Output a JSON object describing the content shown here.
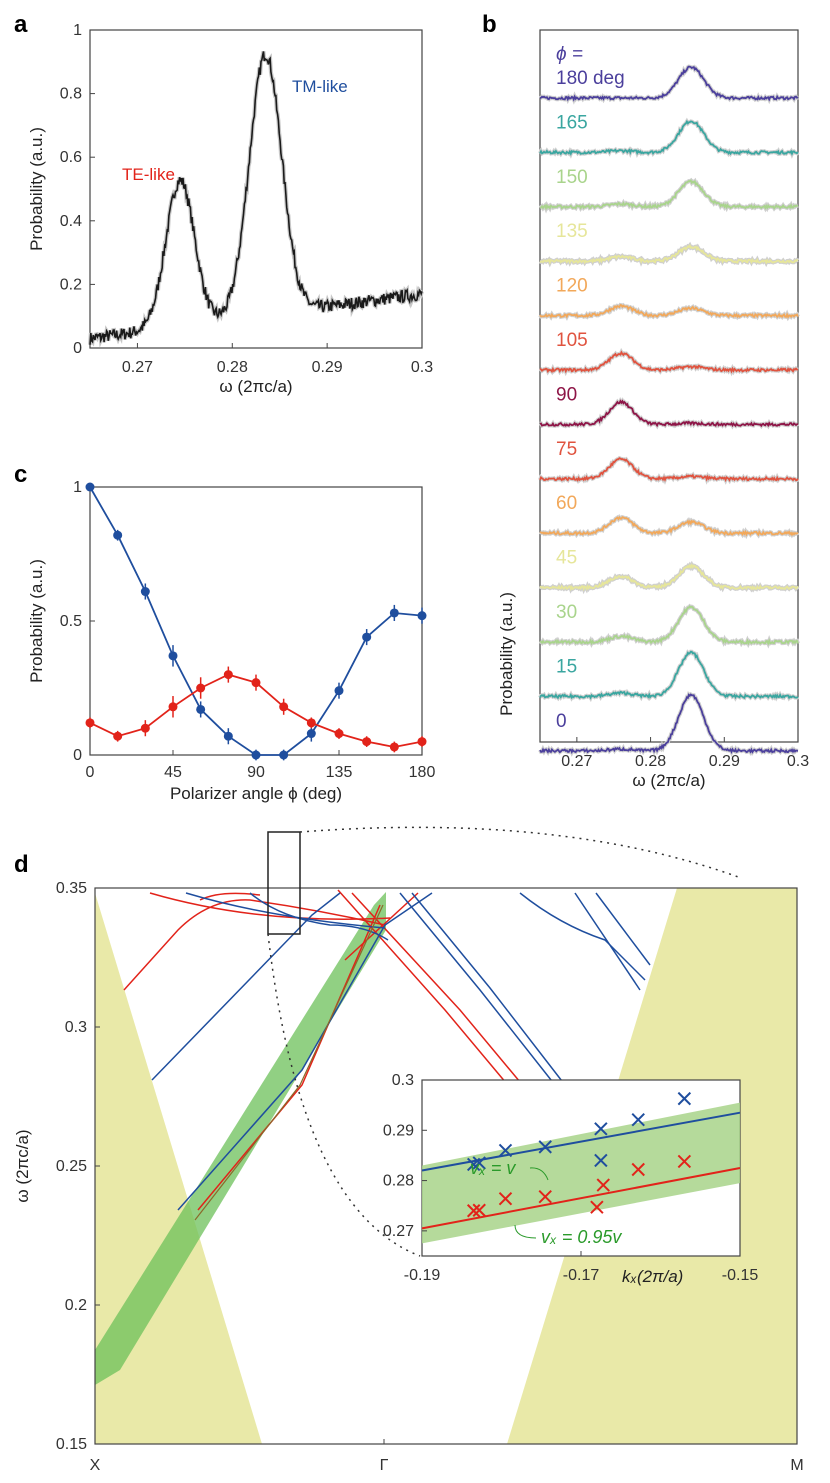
{
  "chart_data": [
    {
      "panel": "a",
      "type": "line",
      "xlabel": "ω (2πc/a)",
      "ylabel": "Probability (a.u.)",
      "xlim": [
        0.265,
        0.3
      ],
      "ylim": [
        0,
        1
      ],
      "xticks": [
        "0.27",
        "0.28",
        "0.29",
        "0.3"
      ],
      "yticks": [
        "0",
        "0.2",
        "0.4",
        "0.6",
        "0.8",
        "1"
      ],
      "annotations": [
        {
          "text": "TE-like",
          "color": "#e2231a"
        },
        {
          "text": "TM-like",
          "color": "#1f4e9e"
        }
      ],
      "series": [
        {
          "color": "#1a1a1a",
          "peaks": [
            {
              "center": 0.2745,
              "height": 0.46,
              "width": 0.0015
            },
            {
              "center": 0.2835,
              "height": 0.82,
              "width": 0.0017
            }
          ],
          "baseline_start": 0.03,
          "baseline_end": 0.17
        }
      ]
    },
    {
      "panel": "b",
      "type": "line",
      "xlabel": "ω (2πc/a)",
      "ylabel": "Probability (a.u.)",
      "xlim": [
        0.265,
        0.3
      ],
      "xticks": [
        "0.27",
        "0.28",
        "0.29",
        "0.3"
      ],
      "legend_title": "ϕ =",
      "traces": [
        {
          "label": "180 deg",
          "phi": 180,
          "color": "#4b3f9c",
          "te": 0.0,
          "tm": 0.55
        },
        {
          "label": "165",
          "phi": 165,
          "color": "#3aa6a0",
          "te": 0.03,
          "tm": 0.56
        },
        {
          "label": "150",
          "phi": 150,
          "color": "#a9d48c",
          "te": 0.05,
          "tm": 0.45
        },
        {
          "label": "135",
          "phi": 135,
          "color": "#e6e69a",
          "te": 0.08,
          "tm": 0.26
        },
        {
          "label": "120",
          "phi": 120,
          "color": "#f2a85a",
          "te": 0.17,
          "tm": 0.13
        },
        {
          "label": "105",
          "phi": 105,
          "color": "#e0533f",
          "te": 0.3,
          "tm": 0.06
        },
        {
          "label": "90",
          "phi": 90,
          "color": "#8e1547",
          "te": 0.4,
          "tm": 0.02
        },
        {
          "label": "75",
          "phi": 75,
          "color": "#e0533f",
          "te": 0.35,
          "tm": 0.04
        },
        {
          "label": "60",
          "phi": 60,
          "color": "#f2a85a",
          "te": 0.28,
          "tm": 0.2
        },
        {
          "label": "45",
          "phi": 45,
          "color": "#e6e69a",
          "te": 0.2,
          "tm": 0.38
        },
        {
          "label": "30",
          "phi": 30,
          "color": "#a9d48c",
          "te": 0.1,
          "tm": 0.62
        },
        {
          "label": "15",
          "phi": 15,
          "color": "#3aa6a0",
          "te": 0.06,
          "tm": 0.78
        },
        {
          "label": "0",
          "phi": 0,
          "color": "#4b3f9c",
          "te": 0.03,
          "tm": 1.0
        }
      ],
      "te_center": 0.276,
      "tm_center": 0.2855
    },
    {
      "panel": "c",
      "type": "line",
      "xlabel": "Polarizer angle ϕ (deg)",
      "ylabel": "Probability (a.u.)",
      "xlim": [
        0,
        180
      ],
      "ylim": [
        0,
        1
      ],
      "xticks": [
        "0",
        "45",
        "90",
        "135",
        "180"
      ],
      "yticks": [
        "0",
        "0.5",
        "1"
      ],
      "x": [
        0,
        15,
        30,
        45,
        60,
        75,
        90,
        105,
        120,
        135,
        150,
        165,
        180
      ],
      "series": [
        {
          "color": "#1f4e9e",
          "values": [
            1.0,
            0.82,
            0.61,
            0.37,
            0.17,
            0.07,
            0.0,
            0.0,
            0.08,
            0.24,
            0.44,
            0.53,
            0.52
          ],
          "errors": [
            0.0,
            0.02,
            0.03,
            0.04,
            0.03,
            0.03,
            0.02,
            0.02,
            0.03,
            0.03,
            0.03,
            0.03,
            0.03
          ]
        },
        {
          "color": "#e2231a",
          "values": [
            0.12,
            0.07,
            0.1,
            0.18,
            0.25,
            0.3,
            0.27,
            0.18,
            0.12,
            0.08,
            0.05,
            0.03,
            0.05
          ],
          "errors": [
            0.02,
            0.02,
            0.03,
            0.04,
            0.04,
            0.03,
            0.03,
            0.03,
            0.02,
            0.02,
            0.02,
            0.02,
            0.02
          ]
        }
      ]
    },
    {
      "panel": "d",
      "type": "line",
      "ylabel": "ω (2πc/a)",
      "ylim": [
        0.15,
        0.35
      ],
      "xticks": [
        "X",
        "Γ",
        "M"
      ],
      "yticks": [
        "0.15",
        "0.2",
        "0.25",
        "0.3",
        "0.35"
      ],
      "cone_color": "#e9e9a8",
      "band_color": "#6cc05a",
      "mode_colors": {
        "te": "#e2231a",
        "tm": "#1f4e9e"
      },
      "inset": {
        "xlabel": "kₓ(2π/a)",
        "xlim": [
          -0.19,
          -0.15
        ],
        "ylim": [
          0.265,
          0.3
        ],
        "xticks": [
          "-0.19",
          "-0.17",
          "-0.15"
        ],
        "yticks": [
          "0.27",
          "0.28",
          "0.29",
          "0.3"
        ],
        "line_labels": [
          "vₓ = v",
          "vₓ = 0.95v"
        ],
        "blue_line": {
          "k": [
            -0.19,
            -0.15
          ],
          "w": [
            0.282,
            0.2935
          ]
        },
        "red_line": {
          "k": [
            -0.19,
            -0.15
          ],
          "w": [
            0.2705,
            0.2825
          ]
        },
        "band": {
          "k": [
            -0.19,
            -0.15
          ],
          "upper": [
            0.283,
            0.2955
          ],
          "lower": [
            0.2675,
            0.2795
          ]
        },
        "blue_points": [
          [
            -0.1835,
            0.2832
          ],
          [
            -0.1828,
            0.2835
          ],
          [
            -0.1795,
            0.286
          ],
          [
            -0.1745,
            0.2867
          ],
          [
            -0.1675,
            0.2903
          ],
          [
            -0.1675,
            0.284
          ],
          [
            -0.1628,
            0.2921
          ],
          [
            -0.157,
            0.2963
          ]
        ],
        "red_points": [
          [
            -0.1835,
            0.274
          ],
          [
            -0.1828,
            0.2741
          ],
          [
            -0.1795,
            0.2764
          ],
          [
            -0.1745,
            0.2768
          ],
          [
            -0.1672,
            0.2791
          ],
          [
            -0.168,
            0.2747
          ],
          [
            -0.1628,
            0.2822
          ],
          [
            -0.157,
            0.2838
          ]
        ]
      }
    }
  ]
}
